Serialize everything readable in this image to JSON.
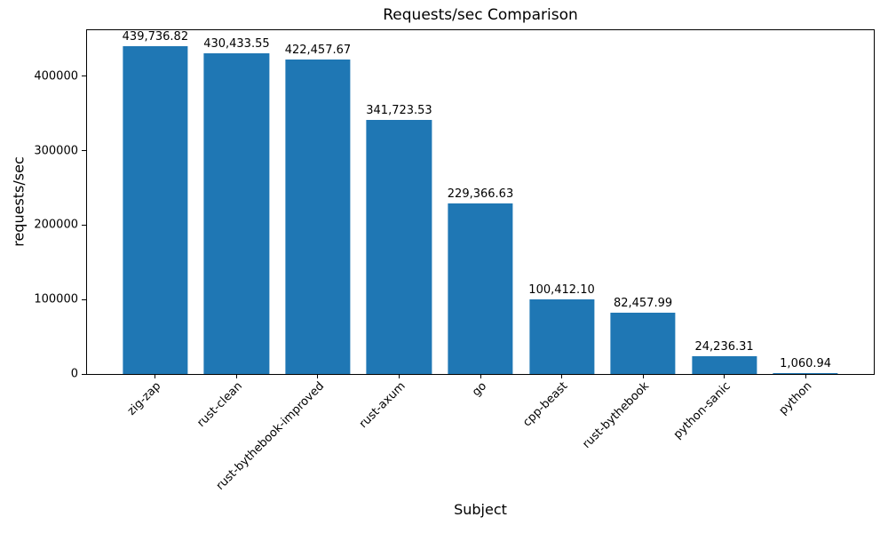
{
  "chart_data": {
    "type": "bar",
    "title": "Requests/sec Comparison",
    "xlabel": "Subject",
    "ylabel": "requests/sec",
    "categories": [
      "zig-zap",
      "rust-clean",
      "rust-bythebook-improved",
      "rust-axum",
      "go",
      "cpp-beast",
      "rust-bythebook",
      "python-sanic",
      "python"
    ],
    "values": [
      439736.82,
      430433.55,
      422457.67,
      341723.53,
      229366.63,
      100412.1,
      82457.99,
      24236.31,
      1060.94
    ],
    "value_labels": [
      "439,736.82",
      "430,433.55",
      "422,457.67",
      "341,723.53",
      "229,366.63",
      "100,412.10",
      "82,457.99",
      "24,236.31",
      "1,060.94"
    ],
    "yticks": [
      0,
      100000,
      200000,
      300000,
      400000
    ],
    "ytick_labels": [
      "0",
      "100000",
      "200000",
      "300000",
      "400000"
    ],
    "ylim": [
      0,
      461724
    ],
    "xlim": [
      -0.84,
      8.84
    ],
    "bar_width": 0.8,
    "bar_color": "#1f77b4",
    "grid": false,
    "legend_position": "none",
    "xtick_rotation_deg": 45
  }
}
